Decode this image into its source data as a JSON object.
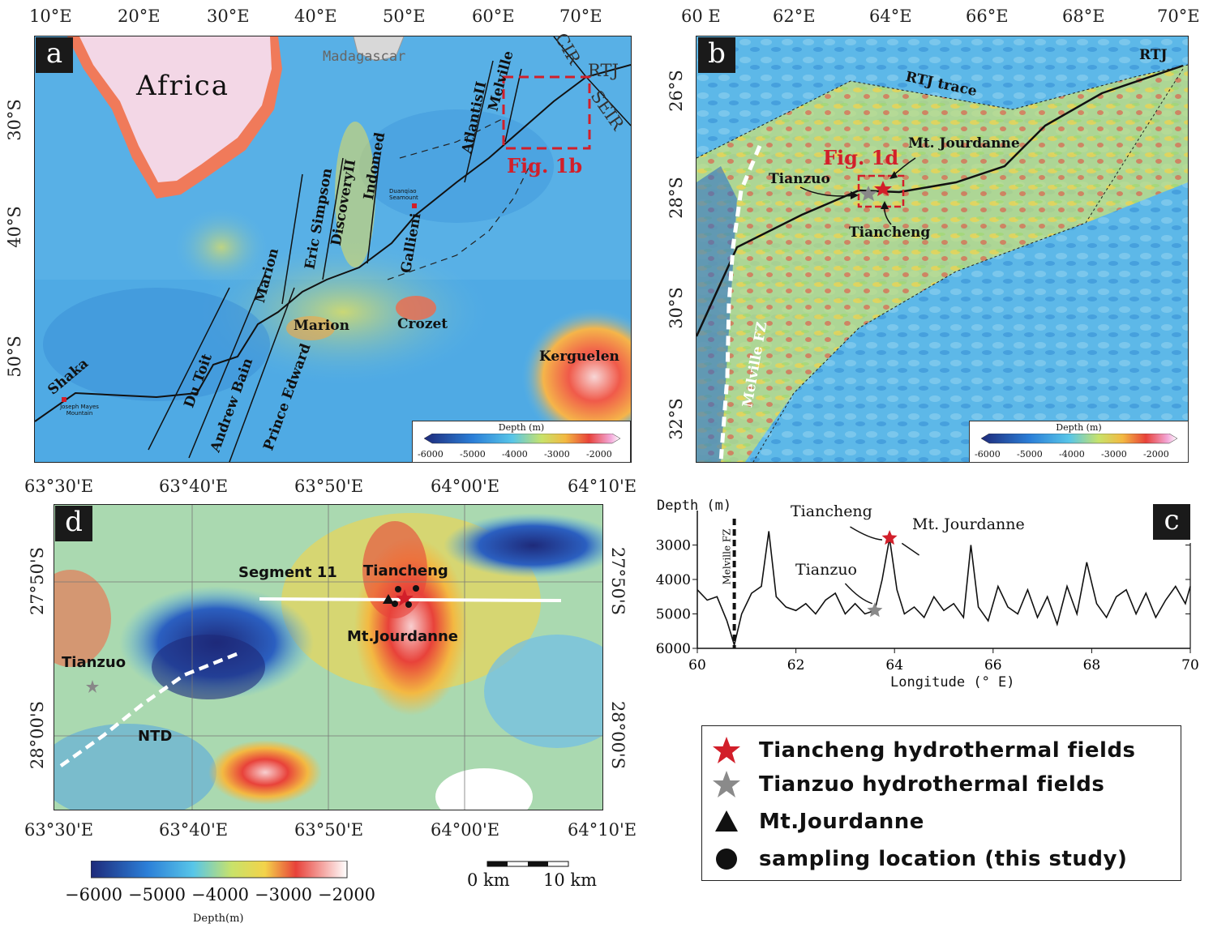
{
  "panel_a": {
    "badge": "a",
    "lon_ticks": [
      "10°E",
      "20°E",
      "30°E",
      "40°E",
      "50°E",
      "60°E",
      "70°E"
    ],
    "lat_ticks": [
      "30°S",
      "40°S",
      "50°S"
    ],
    "labels": {
      "africa": "Africa",
      "madagascar": "Madagascar",
      "rtj": "RTJ",
      "cir": "CIR",
      "seir": "SEIR",
      "fig1b": "Fig. 1b",
      "melville": "Melville",
      "atlantis": "AtlantisII",
      "indomed": "Indomed",
      "discovery": "DiscoveryII",
      "eric": "Eric Simpson",
      "marion_fz": "Marion",
      "gallieni": "Gallieni",
      "duanqiao": "Duanqiao Seamount",
      "marion": "Marion",
      "crozet": "Crozet",
      "kerguelen": "Kerguelen",
      "shaka": "Shaka",
      "joseph": "Joseph Mayes Mountain",
      "dutoit": "Du Toit",
      "andrew": "Andrew Bain",
      "prince": "Prince Edward"
    },
    "colorbar": {
      "title": "Depth (m)",
      "ticks": [
        "-6000",
        "-5000",
        "-4000",
        "-3000",
        "-2000"
      ]
    }
  },
  "panel_b": {
    "badge": "b",
    "lon_ticks": [
      "60 E",
      "62°E",
      "64°E",
      "66°E",
      "68°E",
      "70°E"
    ],
    "lat_ticks": [
      "26°S",
      "28°S",
      "30°S",
      "32°S"
    ],
    "labels": {
      "rtj": "RTJ",
      "rtj_trace": "RTJ trace",
      "fig1d": "Fig. 1d",
      "jourdanne": "Mt. Jourdanne",
      "tianzuo": "Tianzuo",
      "tiancheng": "Tiancheng",
      "melville_fz": "Melville FZ"
    },
    "colorbar": {
      "title": "Depth (m)",
      "ticks": [
        "-6000",
        "-5000",
        "-4000",
        "-3000",
        "-2000"
      ]
    }
  },
  "panel_c": {
    "badge": "c",
    "ylabel": "Depth (m)",
    "xlabel": "Longitude (° E)",
    "melville_fz": "Melville FZ",
    "tiancheng": "Tiancheng",
    "jourdanne": "Mt. Jourdanne",
    "tianzuo": "Tianzuo",
    "x_ticks": [
      "60",
      "62",
      "64",
      "66",
      "68",
      "70"
    ],
    "y_ticks": [
      "3000",
      "4000",
      "5000",
      "6000"
    ]
  },
  "panel_d": {
    "badge": "d",
    "lon_ticks": [
      "63°30'E",
      "63°40'E",
      "63°50'E",
      "64°00'E",
      "64°10'E"
    ],
    "lat_ticks": [
      "27°50'S",
      "28°00'S"
    ],
    "labels": {
      "segment": "Segment 11",
      "tiancheng": "Tiancheng",
      "jourdanne": "Mt.Jourdanne",
      "tianzuo": "Tianzuo",
      "ntd": "NTD"
    },
    "colorbar": {
      "title": "Depth(m)",
      "ticks": [
        "−6000",
        "−5000",
        "−4000",
        "−3000",
        "−2000"
      ]
    },
    "scalebar": {
      "start": "0 km",
      "end": "10 km"
    }
  },
  "legend": {
    "items": [
      {
        "symbol": "red-star",
        "label": "Tiancheng hydrothermal fields"
      },
      {
        "symbol": "gray-star",
        "label": "Tianzuo hydrothermal fields"
      },
      {
        "symbol": "triangle",
        "label": "Mt.Jourdanne"
      },
      {
        "symbol": "circle",
        "label": "sampling location (this study)"
      }
    ]
  },
  "chart_data": {
    "type": "line",
    "title": "",
    "xlabel": "Longitude (° E)",
    "ylabel": "Depth (m)",
    "xlim": [
      60,
      70
    ],
    "ylim": [
      6000,
      2000
    ],
    "series": [
      {
        "x": [
          60.0,
          60.2,
          60.4,
          60.6,
          60.75,
          60.9,
          61.1,
          61.3,
          61.45,
          61.6,
          61.8,
          62.0,
          62.2,
          62.4,
          62.6,
          62.8,
          63.0,
          63.2,
          63.4,
          63.6,
          63.75,
          63.9,
          64.05,
          64.2,
          64.4,
          64.6,
          64.8,
          65.0,
          65.2,
          65.4,
          65.55,
          65.7,
          65.9,
          66.1,
          66.3,
          66.5,
          66.7,
          66.9,
          67.1,
          67.3,
          67.5,
          67.7,
          67.9,
          68.1,
          68.3,
          68.5,
          68.7,
          68.9,
          69.1,
          69.3,
          69.5,
          69.7,
          69.9,
          70.0
        ],
        "y": [
          4300,
          4600,
          4500,
          5200,
          5900,
          5000,
          4400,
          4200,
          2600,
          4500,
          4800,
          4900,
          4700,
          5000,
          4600,
          4400,
          5000,
          4700,
          5000,
          4900,
          4000,
          2800,
          4300,
          5000,
          4800,
          5100,
          4500,
          4900,
          4700,
          5100,
          3000,
          4800,
          5200,
          4200,
          4800,
          5000,
          4300,
          5100,
          4500,
          5300,
          4200,
          5000,
          3500,
          4700,
          5100,
          4500,
          4300,
          5000,
          4400,
          5100,
          4600,
          4200,
          4700,
          4200
        ]
      }
    ]
  }
}
